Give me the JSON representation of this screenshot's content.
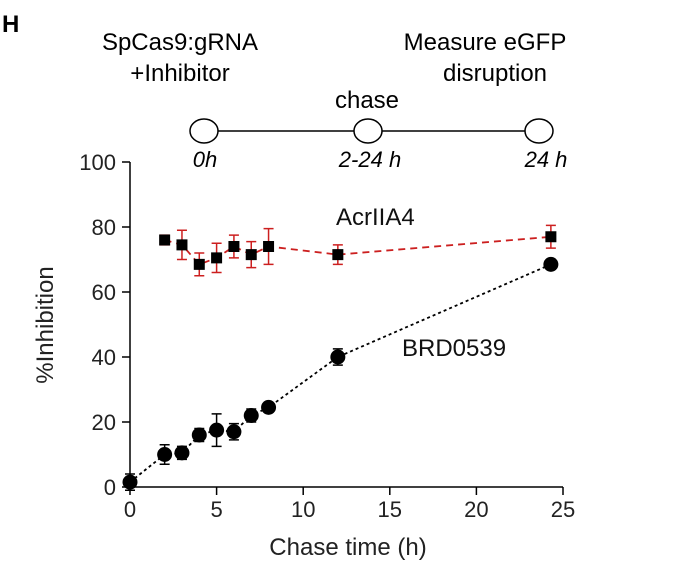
{
  "panel_label": "H",
  "timeline": {
    "step1_line1": "SpCas9:gRNA",
    "step1_line2": "+Inhibitor",
    "step2": "chase",
    "step3_line1": "Measure eGFP",
    "step3_line2": "disruption",
    "node_labels": [
      "0h",
      "2-24 h",
      "24 h"
    ]
  },
  "chart_data": {
    "type": "scatter",
    "title": "",
    "xlabel": "Chase time (h)",
    "ylabel": "%Inhibition",
    "xlim": [
      0,
      25
    ],
    "ylim": [
      0,
      100
    ],
    "xticks": [
      0,
      5,
      10,
      15,
      20,
      25
    ],
    "yticks": [
      0,
      20,
      40,
      60,
      80,
      100
    ],
    "xtick_labels": [
      "0",
      "5",
      "10",
      "15",
      "20",
      "25"
    ],
    "ytick_labels": [
      "0",
      "20",
      "40",
      "60",
      "80",
      "100"
    ],
    "series": [
      {
        "name": "AcrIIA4",
        "color": "#cc1f1f",
        "marker": "square",
        "line": "dashed",
        "x": [
          2,
          3,
          4,
          5,
          6,
          7,
          8,
          12,
          24.3
        ],
        "y": [
          76,
          74.5,
          68.5,
          70.5,
          74,
          71.5,
          74,
          71.5,
          77
        ],
        "err": [
          1.5,
          4.5,
          3.5,
          4.5,
          3.5,
          4,
          5.5,
          3,
          3.5
        ]
      },
      {
        "name": "BRD0539",
        "color": "#000000",
        "marker": "circle",
        "line": "dotted",
        "x": [
          0,
          2,
          3,
          4,
          5,
          6,
          7,
          8,
          12,
          24.3
        ],
        "y": [
          1.5,
          10,
          10.5,
          16,
          17.5,
          17,
          22,
          24.5,
          40,
          68.5
        ],
        "err": [
          2.5,
          3,
          2,
          2,
          5,
          2.5,
          2,
          1.5,
          2.5,
          1.5
        ]
      }
    ]
  }
}
